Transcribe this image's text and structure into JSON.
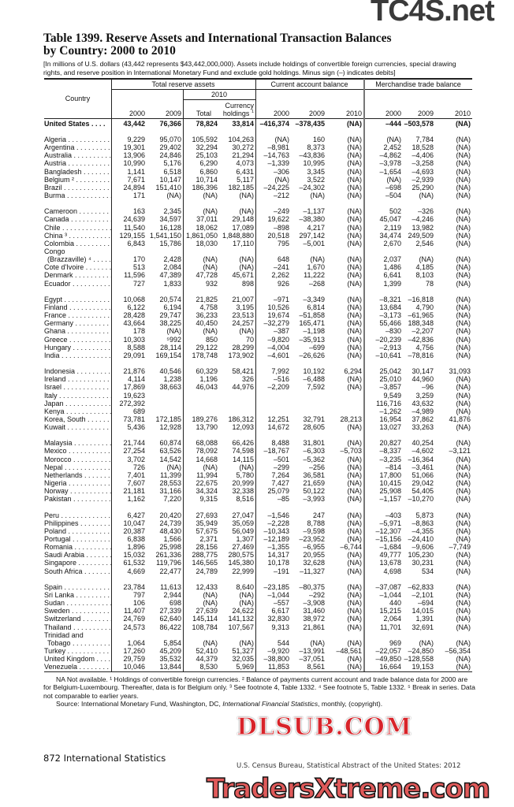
{
  "title_line1": "Table 1399. Reserve Assets and International Transaction Balances",
  "title_line2": "by Country: 2000 to 2010",
  "headnote": "[In millions of U.S. dollars (43,442 represents $43,442,000,000). Assets include holdings of convertible foreign currencies, special drawing rights, and reserve position in International Monetary Fund and exclude gold holdings. Minus sign (–) indicates debits]",
  "header": {
    "country": "Country",
    "group_reserve": "Total reserve assets",
    "group_current": "Current account balance",
    "group_trade": "Merchandise trade balance",
    "sub_2010": "2010",
    "currency_line1": "Currency",
    "currency_line2": "holdings",
    "currency_note": "1",
    "total": "Total",
    "y2000": "2000",
    "y2009": "2009",
    "y2010": "2010"
  },
  "us_row": [
    "United States . . . .",
    "43,442",
    "76,366",
    "78,824",
    "33,814",
    "–416,374",
    "–378,435",
    "(NA)",
    "–444",
    "–503,578",
    "(NA)"
  ],
  "groups": [
    {
      "rows": [
        [
          "Algeria",
          "9,229",
          "95,070",
          "105,592",
          "104,263",
          "(NA)",
          "160",
          "(NA)",
          "(NA)",
          "7,784",
          "(NA)"
        ],
        [
          "Argentina",
          "19,301",
          "29,402",
          "32,294",
          "30,272",
          "–8,981",
          "8,373",
          "(NA)",
          "2,452",
          "18,528",
          "(NA)"
        ],
        [
          "Australia",
          "13,906",
          "24,846",
          "25,103",
          "21,294",
          "–14,763",
          "–43,836",
          "(NA)",
          "–4,862",
          "–4,406",
          "(NA)"
        ],
        [
          "Austria",
          "10,990",
          "5,176",
          "6,290",
          "4,073",
          "–1,339",
          "10,995",
          "(NA)",
          "–3,978",
          "–3,258",
          "(NA)"
        ],
        [
          "Bangladesh",
          "1,141",
          "6,518",
          "6,860",
          "6,431",
          "–306",
          "3,345",
          "(NA)",
          "–1,654",
          "–4,693",
          "(NA)"
        ],
        [
          "Belgium ²",
          "7,671",
          "10,147",
          "10,714",
          "5,117",
          "(NA)",
          "3,522",
          "(NA)",
          "(NA)",
          "–2,939",
          "(NA)"
        ],
        [
          "Brazil",
          "24,894",
          "151,410",
          "186,396",
          "182,185",
          "–24,225",
          "–24,302",
          "(NA)",
          "–698",
          "25,290",
          "(NA)"
        ],
        [
          "Burma",
          "171",
          "(NA)",
          "(NA)",
          "(NA)",
          "–212",
          "(NA)",
          "(NA)",
          "–504",
          "(NA)",
          "(NA)"
        ]
      ]
    },
    {
      "rows": [
        [
          "Cameroon",
          "163",
          "2,345",
          "(NA)",
          "(NA)",
          "–249",
          "–1,137",
          "(NA)",
          "502",
          "–326",
          "(NA)"
        ],
        [
          "Canada",
          "24,639",
          "34,597",
          "37,011",
          "29,148",
          "19,622",
          "–38,380",
          "(NA)",
          "45,047",
          "–4,246",
          "(NA)"
        ],
        [
          "Chile",
          "11,540",
          "16,128",
          "18,062",
          "17,089",
          "–898",
          "4,217",
          "(NA)",
          "2,119",
          "13,982",
          "(NA)"
        ],
        [
          "China ³",
          "129,155",
          "1,541,150",
          "1,861,050",
          "1,848,880",
          "20,518",
          "297,142",
          "(NA)",
          "34,474",
          "249,509",
          "(NA)"
        ],
        [
          "Colombia",
          "6,843",
          "15,786",
          "18,030",
          "17,110",
          "795",
          "–5,001",
          "(NA)",
          "2,670",
          "2,546",
          "(NA)"
        ],
        [
          "Congo"
        ],
        [
          "(Brazzaville) ⁴",
          "170",
          "2,428",
          "(NA)",
          "(NA)",
          "648",
          "(NA)",
          "(NA)",
          "2,037",
          "(NA)",
          "(NA)"
        ],
        [
          "Cote d'Ivoire",
          "513",
          "2,084",
          "(NA)",
          "(NA)",
          "–241",
          "1,670",
          "(NA)",
          "1,486",
          "4,185",
          "(NA)"
        ],
        [
          "Denmark",
          "11,596",
          "47,389",
          "47,728",
          "45,671",
          "2,262",
          "11,222",
          "(NA)",
          "6,641",
          "8,103",
          "(NA)"
        ],
        [
          "Ecuador",
          "727",
          "1,833",
          "932",
          "898",
          "926",
          "–268",
          "(NA)",
          "1,399",
          "78",
          "(NA)"
        ]
      ]
    },
    {
      "rows": [
        [
          "Egypt",
          "10,068",
          "20,574",
          "21,825",
          "21,007",
          "–971",
          "–3,349",
          "(NA)",
          "–8,321",
          "–16,818",
          "(NA)"
        ],
        [
          "Finland",
          "6,122",
          "6,194",
          "4,758",
          "3,195",
          "10,526",
          "6,814",
          "(NA)",
          "13,684",
          "4,790",
          "(NA)"
        ],
        [
          "France",
          "28,428",
          "29,747",
          "36,233",
          "23,513",
          "19,674",
          "–51,858",
          "(NA)",
          "–3,173",
          "–61,965",
          "(NA)"
        ],
        [
          "Germany",
          "43,664",
          "38,225",
          "40,450",
          "24,257",
          "–32,279",
          "165,471",
          "(NA)",
          "55,466",
          "188,348",
          "(NA)"
        ],
        [
          "Ghana",
          "178",
          "(NA)",
          "(NA)",
          "(NA)",
          "–387",
          "–1,198",
          "(NA)",
          "–830",
          "–2,207",
          "(NA)"
        ],
        [
          "Greece",
          "10,303",
          "⁵992",
          "850",
          "70",
          "–9,820",
          "–35,913",
          "(NA)",
          "–20,239",
          "–42,836",
          "(NA)"
        ],
        [
          "Hungary",
          "8,588",
          "28,114",
          "29,122",
          "28,299",
          "–4,004",
          "–699",
          "(NA)",
          "–2,913",
          "4,756",
          "(NA)"
        ],
        [
          "India",
          "29,091",
          "169,154",
          "178,748",
          "173,902",
          "–4,601",
          "–26,626",
          "(NA)",
          "–10,641",
          "–78,816",
          "(NA)"
        ]
      ]
    },
    {
      "rows": [
        [
          "Indonesia",
          "21,876",
          "40,546",
          "60,329",
          "58,421",
          "7,992",
          "10,192",
          "6,294",
          "25,042",
          "30,147",
          "31,093"
        ],
        [
          "Ireland",
          "4,114",
          "1,238",
          "1,196",
          "326",
          "–516",
          "–6,488",
          "(NA)",
          "25,010",
          "44,960",
          "(NA)"
        ],
        [
          "Israel",
          "17,869",
          "38,663",
          "46,043",
          "44,976",
          "–2,209",
          "7,592",
          "(NA)",
          "–3,857",
          "–96",
          "(NA)"
        ],
        [
          "Italy",
          "19,623",
          "",
          "",
          "",
          "",
          "",
          "",
          "9,549",
          "3,259",
          "(NA)"
        ],
        [
          "Japan",
          "272,392",
          "",
          "",
          "",
          "",
          "",
          "",
          "116,716",
          "43,632",
          "(NA)"
        ],
        [
          "Kenya",
          "689",
          "",
          "",
          "",
          "",
          "",
          "",
          "–1,262",
          "–4,989",
          "(NA)"
        ],
        [
          "Korea, South",
          "73,781",
          "172,185",
          "189,276",
          "186,312",
          "12,251",
          "32,791",
          "28,213",
          "16,954",
          "37,862",
          "41,876"
        ],
        [
          "Kuwait",
          "5,436",
          "12,928",
          "13,790",
          "12,093",
          "14,672",
          "28,605",
          "(NA)",
          "13,027",
          "33,263",
          "(NA)"
        ]
      ]
    },
    {
      "rows": [
        [
          "Malaysia",
          "21,744",
          "60,874",
          "68,088",
          "66,426",
          "8,488",
          "31,801",
          "(NA)",
          "20,827",
          "40,254",
          "(NA)"
        ],
        [
          "Mexico",
          "27,254",
          "63,526",
          "78,092",
          "74,598",
          "–18,767",
          "–6,303",
          "–5,703",
          "–8,337",
          "–4,602",
          "–3,121"
        ],
        [
          "Morocco",
          "3,702",
          "14,542",
          "14,668",
          "14,115",
          "–501",
          "–5,362",
          "(NA)",
          "–3,235",
          "–16,364",
          "(NA)"
        ],
        [
          "Nepal",
          "726",
          "(NA)",
          "(NA)",
          "(NA)",
          "–299",
          "–256",
          "(NA)",
          "–814",
          "–3,461",
          "(NA)"
        ],
        [
          "Netherlands",
          "7,401",
          "11,399",
          "11,994",
          "5,780",
          "7,264",
          "36,581",
          "(NA)",
          "17,800",
          "51,066",
          "(NA)"
        ],
        [
          "Nigeria",
          "7,607",
          "28,553",
          "22,675",
          "20,999",
          "7,427",
          "21,659",
          "(NA)",
          "10,415",
          "29,042",
          "(NA)"
        ],
        [
          "Norway",
          "21,181",
          "31,166",
          "34,324",
          "32,338",
          "25,079",
          "50,122",
          "(NA)",
          "25,908",
          "54,405",
          "(NA)"
        ],
        [
          "Pakistan",
          "1,162",
          "7,220",
          "9,315",
          "8,516",
          "–85",
          "–3,993",
          "(NA)",
          "–1,157",
          "–10,270",
          "(NA)"
        ]
      ]
    },
    {
      "rows": [
        [
          "Peru",
          "6,427",
          "20,420",
          "27,693",
          "27,047",
          "–1,546",
          "247",
          "(NA)",
          "–403",
          "5,873",
          "(NA)"
        ],
        [
          "Philippines",
          "10,047",
          "24,739",
          "35,949",
          "35,059",
          "–2,228",
          "8,788",
          "(NA)",
          "–5,971",
          "–8,863",
          "(NA)"
        ],
        [
          "Poland",
          "20,387",
          "48,430",
          "57,675",
          "56,049",
          "–10,343",
          "–9,598",
          "(NA)",
          "–12,307",
          "–4,355",
          "(NA)"
        ],
        [
          "Portugal",
          "6,838",
          "1,566",
          "2,371",
          "1,307",
          "–12,189",
          "–23,952",
          "(NA)",
          "–15,156",
          "–24,410",
          "(NA)"
        ],
        [
          "Romania",
          "1,896",
          "25,998",
          "28,156",
          "27,469",
          "–1,355",
          "–6,955",
          "–6,744",
          "–1,684",
          "–9,606",
          "–7,749"
        ],
        [
          "Saudi Arabia",
          "15,032",
          "261,336",
          "288,775",
          "280,575",
          "14,317",
          "20,955",
          "(NA)",
          "49,777",
          "105,230",
          "(NA)"
        ],
        [
          "Singapore",
          "61,532",
          "119,796",
          "146,565",
          "145,380",
          "10,178",
          "32,628",
          "(NA)",
          "13,678",
          "30,231",
          "(NA)"
        ],
        [
          "South Africa",
          "4,669",
          "22,477",
          "24,789",
          "22,999",
          "–191",
          "–11,327",
          "(NA)",
          "4,698",
          "534",
          "(NA)"
        ]
      ]
    },
    {
      "rows": [
        [
          "Spain",
          "23,784",
          "11,613",
          "12,433",
          "8,640",
          "–23,185",
          "–80,375",
          "(NA)",
          "–37,087",
          "–62,833",
          "(NA)"
        ],
        [
          "Sri Lanka",
          "797",
          "2,944",
          "(NA)",
          "(NA)",
          "–1,044",
          "–292",
          "(NA)",
          "–1,044",
          "–2,101",
          "(NA)"
        ],
        [
          "Sudan",
          "106",
          "698",
          "(NA)",
          "(NA)",
          "–557",
          "–3,908",
          "(NA)",
          "440",
          "–694",
          "(NA)"
        ],
        [
          "Sweden",
          "11,407",
          "27,339",
          "27,639",
          "24,622",
          "6,617",
          "31,460",
          "(NA)",
          "15,215",
          "14,015",
          "(NA)"
        ],
        [
          "Switzerland",
          "24,769",
          "62,640",
          "145,114",
          "141,132",
          "32,830",
          "38,972",
          "(NA)",
          "2,064",
          "1,391",
          "(NA)"
        ],
        [
          "Thailand",
          "24,573",
          "86,422",
          "108,784",
          "107,567",
          "9,313",
          "21,861",
          "(NA)",
          "11,701",
          "32,691",
          "(NA)"
        ],
        [
          "Trinidad and"
        ],
        [
          "Tobago",
          "1,064",
          "5,854",
          "(NA)",
          "(NA)",
          "544",
          "(NA)",
          "(NA)",
          "969",
          "(NA)",
          "(NA)"
        ],
        [
          "Turkey",
          "17,260",
          "45,209",
          "52,410",
          "51,327",
          "–9,920",
          "–13,991",
          "–48,561",
          "–22,057",
          "–24,850",
          "–56,354"
        ],
        [
          "United Kingdom",
          "29,759",
          "35,532",
          "44,379",
          "32,035",
          "–38,800",
          "–37,051",
          "(NA)",
          "–49,850",
          "–128,558",
          "(NA)"
        ],
        [
          "Venezuela",
          "10,046",
          "13,844",
          "8,530",
          "5,969",
          "11,853",
          "8,561",
          "(NA)",
          "16,664",
          "19,153",
          "(NA)"
        ]
      ]
    }
  ],
  "footnotes": "NA Not available. ¹ Holdings of convertible foreign currencies. ² Balance of payments current account and trade balance data for 2000 are for Belgium-Luxembourg. Thereafter, data is for Belgium only. ³ See footnote 4, Table 1332. ⁴ See footnote 5, Table 1332. ⁵ Break in series. Data not comparable to earlier years.",
  "source_prefix": "Source: International Monetary Fund, Washington, DC, ",
  "source_title": "International Financial Statistics",
  "source_suffix": ", monthly, (copyright).",
  "page_footer": "872  International Statistics",
  "credit": "U.S. Census Bureau, Statistical Abstract of the United States: 2012",
  "watermarks": [
    "TC4S.net",
    "DLSUB.COM",
    "TradersXtreme.com"
  ]
}
